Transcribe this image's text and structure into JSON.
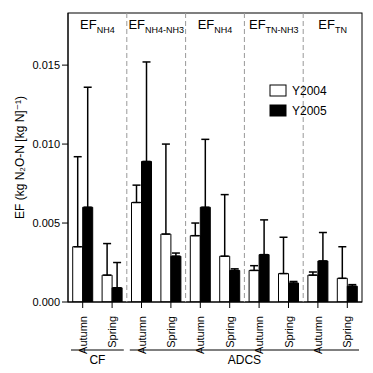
{
  "chart_data": {
    "type": "bar",
    "y_label": "EF (kg N₂O-N [kg N]⁻¹)",
    "categories": [
      "Autumn",
      "Spring",
      "Autumn",
      "Spring",
      "Autumn",
      "Spring",
      "Autumn",
      "Spring",
      "Autumn",
      "Spring"
    ],
    "top_groups": [
      {
        "text": "EF",
        "subscript": "NH4"
      },
      {
        "text": "EF",
        "subscript": "NH4-NH3"
      },
      {
        "text": "EF",
        "subscript": "NH4"
      },
      {
        "text": "EF",
        "subscript": "TN-NH3"
      },
      {
        "text": "EF",
        "subscript": "TN"
      }
    ],
    "x_groups": [
      {
        "label": "CF",
        "categories": [
          "Autumn",
          "Spring"
        ]
      },
      {
        "label": "ADCS",
        "categories": [
          "Autumn",
          "Spring",
          "Autumn",
          "Spring",
          "Autumn",
          "Spring",
          "Autumn",
          "Spring"
        ]
      }
    ],
    "series": [
      {
        "name": "Y2004",
        "color": "#ffffff",
        "values": [
          0.0035,
          0.0017,
          0.0063,
          0.0043,
          0.0042,
          0.0029,
          0.002,
          0.0018,
          0.0017,
          0.0015
        ],
        "error": [
          0.0057,
          0.002,
          0.0011,
          0.0057,
          0.0008,
          0.0039,
          0.0003,
          0.0023,
          0.0002,
          0.002
        ]
      },
      {
        "name": "Y2005",
        "color": "#000000",
        "values": [
          0.006,
          0.0009,
          0.0089,
          0.0029,
          0.006,
          0.002,
          0.003,
          0.0012,
          0.0026,
          0.001
        ],
        "error": [
          0.0076,
          0.0016,
          0.0063,
          0.0002,
          0.0043,
          0.0001,
          0.0022,
          0.0001,
          0.0018,
          0.0001
        ]
      }
    ],
    "ylim": [
      0,
      0.0183
    ],
    "yticks": [
      {
        "value": 0,
        "label": "0.000"
      },
      {
        "value": 0.005,
        "label": "0.005"
      },
      {
        "value": 0.01,
        "label": "0.010"
      },
      {
        "value": 0.015,
        "label": "0.015"
      }
    ],
    "legend": "upper right"
  }
}
